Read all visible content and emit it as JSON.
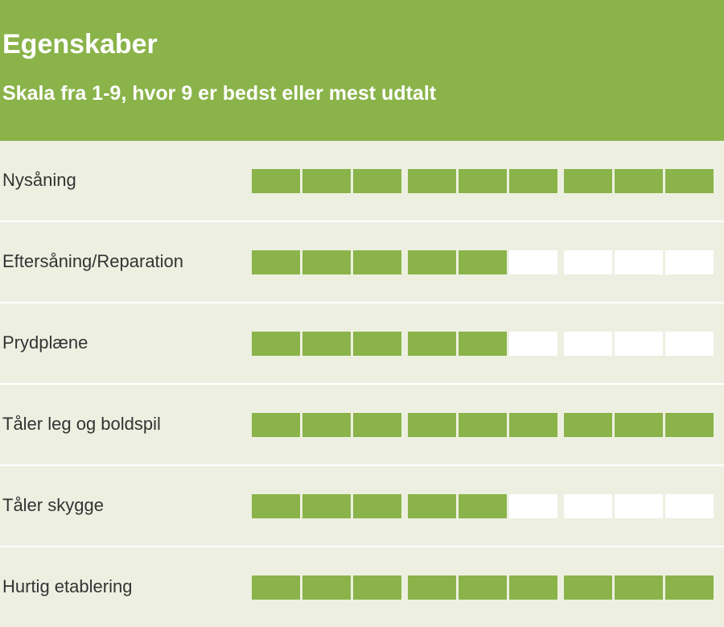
{
  "header": {
    "title": "Egenskaber",
    "subtitle": "Skala fra 1-9, hvor 9 er bedst eller mest udtalt"
  },
  "scale_max": 9,
  "rows": [
    {
      "label": "Nysåning",
      "value": 9
    },
    {
      "label": "Eftersåning/Reparation",
      "value": 5
    },
    {
      "label": "Prydplæne",
      "value": 5
    },
    {
      "label": "Tåler leg og boldspil",
      "value": 9
    },
    {
      "label": "Tåler skygge",
      "value": 5
    },
    {
      "label": "Hurtig etablering",
      "value": 9
    }
  ]
}
